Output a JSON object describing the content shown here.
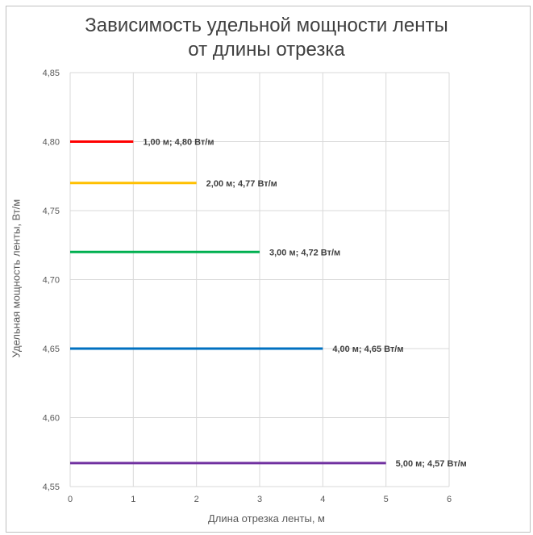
{
  "chart_data": {
    "type": "line",
    "title": "Зависимость удельной мощности ленты от длины отрезка",
    "title_lines": [
      "Зависимость удельной мощности ленты",
      "от длины отрезка"
    ],
    "xlabel": "Длина отрезка ленты, м",
    "ylabel": "Удельная мощность ленты, Вт/м",
    "xlim": [
      0,
      6
    ],
    "ylim": [
      4.55,
      4.85
    ],
    "x_ticks": [
      "0",
      "1",
      "2",
      "3",
      "4",
      "5",
      "6"
    ],
    "y_ticks": [
      "4,55",
      "4,60",
      "4,65",
      "4,70",
      "4,75",
      "4,80",
      "4,85"
    ],
    "grid": true,
    "series": [
      {
        "x": [
          0,
          1
        ],
        "values": [
          4.8,
          4.8
        ],
        "color": "#ff0000",
        "label": "1,00 м; 4,80 Вт/м"
      },
      {
        "x": [
          0,
          2
        ],
        "values": [
          4.77,
          4.77
        ],
        "color": "#ffc000",
        "label": "2,00 м; 4,77 Вт/м"
      },
      {
        "x": [
          0,
          3
        ],
        "values": [
          4.72,
          4.72
        ],
        "color": "#00b050",
        "label": "3,00 м; 4,72 Вт/м"
      },
      {
        "x": [
          0,
          4
        ],
        "values": [
          4.65,
          4.65
        ],
        "color": "#0070c0",
        "label": "4,00 м; 4,65 Вт/м"
      },
      {
        "x": [
          0,
          5
        ],
        "values": [
          4.567,
          4.567
        ],
        "color": "#7030a0",
        "label": "5,00 м; 4,57 Вт/м"
      }
    ]
  }
}
